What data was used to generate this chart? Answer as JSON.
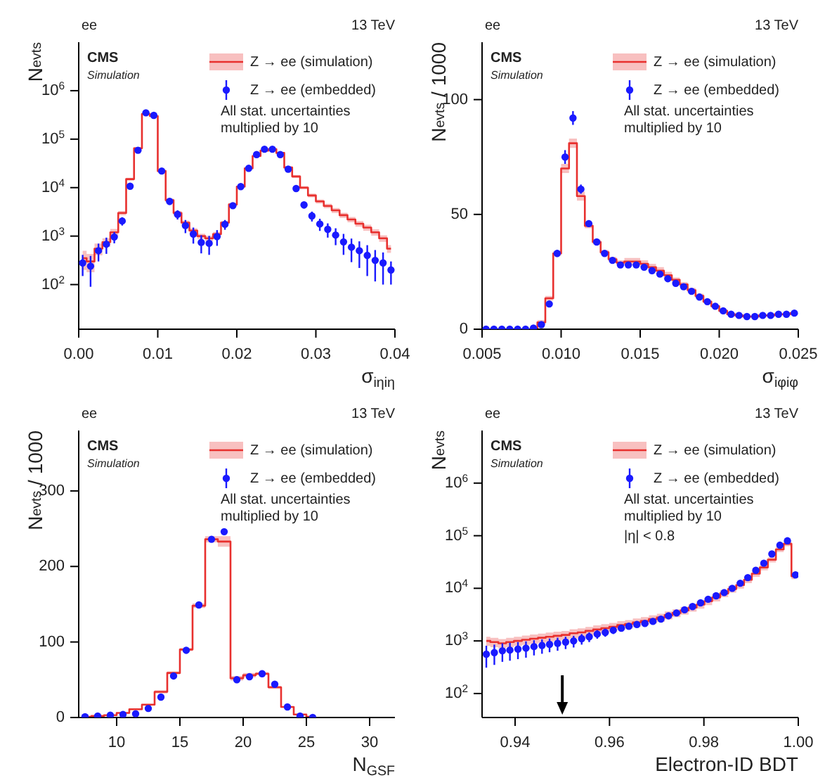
{
  "chart_data": [
    {
      "type": "step",
      "xlabel": "σ$_{iηiη}$",
      "ylabel": "N$_{evts}$",
      "log": "y",
      "legend": "top right",
      "annotations": [
        "ee",
        "13 TeV",
        "CMS",
        "Simulation",
        "All stat. uncertainties multiplied by 10"
      ],
      "x": [
        0.0005,
        0.0015,
        0.0025,
        0.0035,
        0.0045,
        0.0055,
        0.0065,
        0.0075,
        0.0085,
        0.0095,
        0.0105,
        0.0115,
        0.0125,
        0.0135,
        0.0145,
        0.0155,
        0.0165,
        0.0175,
        0.0185,
        0.0195,
        0.0205,
        0.0215,
        0.0225,
        0.0235,
        0.0245,
        0.0255,
        0.0265,
        0.0275,
        0.0285,
        0.0295,
        0.0305,
        0.0315,
        0.0325,
        0.0335,
        0.0345,
        0.0355,
        0.0365,
        0.0375,
        0.0385,
        0.0395
      ],
      "xlim": [
        0,
        0.04
      ],
      "xticks": [
        {
          "value": 0,
          "label": "0.00"
        },
        0.01,
        0.02,
        0.03,
        0.04
      ],
      "ylim": [
        12,
        10000000
      ],
      "yticks": [
        {
          "value": 100,
          "label": "10$^{2}$"
        },
        {
          "value": 1000,
          "label": "10$^{3}$"
        },
        {
          "value": 10000,
          "label": "10$^{4}$"
        },
        {
          "value": 100000,
          "label": "10$^{5}$"
        },
        {
          "value": 1000000,
          "label": "10$^{6}$"
        }
      ],
      "series": [
        {
          "name": "Z → ee (simulation)",
          "color": "#e8302e",
          "values": [
            350,
            300,
            550,
            750,
            1200,
            3000,
            15000,
            65000,
            330000,
            300000,
            22000,
            5500,
            3000,
            1900,
            1300,
            1000,
            900,
            1100,
            1900,
            4500,
            10500,
            25000,
            45000,
            58000,
            62000,
            52000,
            26000,
            17000,
            10000,
            6900,
            5200,
            4200,
            3400,
            2700,
            2200,
            1800,
            1500,
            1200,
            900,
            550
          ],
          "lower": [
            200,
            180,
            400,
            600,
            1000,
            2700,
            14000,
            62000,
            320000,
            290000,
            21000,
            5100,
            2700,
            1700,
            1150,
            880,
            790,
            980,
            1750,
            4200,
            10000,
            24000,
            43000,
            56000,
            60000,
            50000,
            24500,
            15800,
            9200,
            6300,
            4700,
            3750,
            3000,
            2380,
            1920,
            1560,
            1290,
            1020,
            760,
            450
          ],
          "upper": [
            500,
            430,
            700,
            900,
            1400,
            3300,
            16000,
            68000,
            340000,
            310000,
            23000,
            5900,
            3300,
            2100,
            1450,
            1120,
            1010,
            1220,
            2050,
            4800,
            11000,
            26000,
            47000,
            60000,
            64000,
            54000,
            27500,
            18200,
            10800,
            7500,
            5700,
            4650,
            3800,
            3020,
            2480,
            2040,
            1710,
            1380,
            1040,
            650
          ]
        },
        {
          "name": "Z → ee (embedded)",
          "type": "scatter",
          "marker": "circle",
          "color": "#1a1aff",
          "values": [
            280,
            240,
            500,
            680,
            960,
            2050,
            10700,
            59000,
            350000,
            310000,
            22000,
            5200,
            2800,
            1650,
            1100,
            740,
            710,
            980,
            1750,
            4250,
            10500,
            25000,
            48000,
            62000,
            62000,
            48000,
            24000,
            9600,
            4400,
            2600,
            1780,
            1380,
            1050,
            760,
            590,
            500,
            400,
            316,
            280,
            200
          ],
          "errors": [
            130,
            150,
            200,
            250,
            250,
            400,
            1000,
            3000,
            20000,
            20000,
            2000,
            800,
            600,
            500,
            400,
            300,
            300,
            350,
            400,
            600,
            1000,
            2000,
            3000,
            3000,
            3000,
            3000,
            2000,
            1000,
            700,
            600,
            500,
            450,
            400,
            350,
            300,
            280,
            250,
            200,
            180,
            100
          ]
        }
      ]
    },
    {
      "type": "step",
      "xlabel": "σ$_{iφiφ}$",
      "ylabel": "N$_{evts}$ / 1000",
      "legend": "top right",
      "annotations": [
        "ee",
        "13 TeV",
        "CMS",
        "Simulation",
        "All stat. uncertainties multiplied by 10"
      ],
      "x": [
        0.00525,
        0.00575,
        0.00625,
        0.00675,
        0.00725,
        0.00775,
        0.00825,
        0.00875,
        0.00925,
        0.00975,
        0.01025,
        0.01075,
        0.01125,
        0.01175,
        0.01225,
        0.01275,
        0.01325,
        0.01375,
        0.01425,
        0.01475,
        0.01525,
        0.01575,
        0.01625,
        0.01675,
        0.01725,
        0.01775,
        0.01825,
        0.01875,
        0.01925,
        0.01975,
        0.02025,
        0.02075,
        0.02125,
        0.02175,
        0.02225,
        0.02275,
        0.02325,
        0.02375,
        0.02425,
        0.02475
      ],
      "xlim": [
        0.005,
        0.025
      ],
      "xticks": [
        0.005,
        {
          "value": 0.01,
          "label": "0.010"
        },
        0.015,
        {
          "value": 0.02,
          "label": "0.020"
        },
        0.025
      ],
      "ylim": [
        0,
        125
      ],
      "yticks": [
        0,
        50,
        100
      ],
      "series": [
        {
          "name": "Z → ee (simulation)",
          "color": "#e8302e",
          "values": [
            null,
            null,
            null,
            null,
            null,
            null,
            0.5,
            3,
            13.5,
            33,
            70,
            81,
            58,
            45,
            38,
            33.5,
            30.5,
            29,
            29.5,
            29.5,
            28.5,
            27,
            25.5,
            23.5,
            21.5,
            19.5,
            17,
            14.5,
            12,
            10,
            8,
            6.5,
            6,
            5.5,
            5.5,
            6,
            6,
            6.5,
            6.5,
            7
          ],
          "lower": [
            null,
            null,
            null,
            null,
            null,
            null,
            0.3,
            2,
            12.5,
            32,
            68,
            79,
            56,
            44,
            37,
            32.5,
            29.5,
            28,
            28,
            28,
            27,
            25.5,
            24,
            22,
            20.5,
            18.5,
            16,
            13.5,
            11.5,
            9.5,
            7.5,
            6,
            5.5,
            5,
            5,
            5.5,
            5.5,
            6,
            6,
            6.5
          ],
          "upper": [
            null,
            null,
            null,
            null,
            null,
            null,
            0.7,
            4,
            14.5,
            34,
            72,
            83,
            60,
            46,
            39,
            34.5,
            31.5,
            30,
            31,
            31,
            30,
            28.5,
            27,
            25,
            22.5,
            20.5,
            18,
            15.5,
            12.5,
            10.5,
            8.5,
            7,
            6.5,
            6,
            6,
            6.5,
            6.5,
            7,
            7,
            7.5
          ]
        },
        {
          "name": "Z → ee (embedded)",
          "type": "scatter",
          "marker": "circle",
          "color": "#1a1aff",
          "values": [
            0,
            0,
            0,
            0,
            0,
            0,
            0.5,
            2,
            11,
            33,
            75,
            92,
            61,
            46,
            38,
            33,
            30,
            28,
            28,
            28,
            27,
            25.5,
            24,
            22,
            20,
            18.5,
            16.5,
            14,
            12,
            10,
            8,
            6.5,
            6,
            5.5,
            5.5,
            6,
            6,
            6.5,
            6.5,
            7
          ],
          "errors": [
            0,
            0,
            0,
            0,
            0,
            0,
            0,
            0.5,
            1,
            1.5,
            3,
            3,
            2,
            1.5,
            1,
            1,
            1,
            1,
            1,
            1,
            1,
            1,
            1,
            1,
            1,
            1,
            1,
            1,
            1,
            1,
            0.5,
            0.5,
            0.5,
            0.5,
            0.5,
            0.5,
            0.5,
            0.5,
            0.5,
            0.5
          ]
        }
      ]
    },
    {
      "type": "step",
      "xlabel": "N$_{GSF}$",
      "ylabel": "N$_{evts}$ / 1000",
      "legend": "top right",
      "annotations": [
        "ee",
        "13 TeV",
        "CMS",
        "Simulation",
        "All stat. uncertainties multiplied by 10"
      ],
      "x": [
        7.5,
        8.5,
        9.5,
        10.5,
        11.5,
        12.5,
        13.5,
        14.5,
        15.5,
        16.5,
        17.5,
        18.5,
        19.5,
        20.5,
        21.5,
        22.5,
        23.5,
        24.5,
        25.5
      ],
      "xlim": [
        7,
        32
      ],
      "xticks": [
        10,
        15,
        20,
        25,
        30
      ],
      "ylim": [
        0,
        380
      ],
      "yticks": [
        0,
        100,
        200,
        300
      ],
      "series": [
        {
          "name": "Z → ee (simulation)",
          "color": "#e8302e",
          "values": [
            1,
            2,
            3,
            6,
            11,
            17,
            34,
            59,
            90,
            148,
            236,
            233,
            52,
            56,
            58,
            40,
            14,
            4,
            1
          ],
          "lower": [
            0,
            1,
            2,
            5,
            10,
            16,
            32,
            57,
            88,
            145,
            232,
            226,
            49,
            53,
            56,
            38,
            13,
            3,
            0
          ],
          "upper": [
            2,
            3,
            4,
            7,
            12,
            18,
            36,
            61,
            92,
            151,
            240,
            240,
            55,
            59,
            60,
            42,
            15,
            5,
            2
          ]
        },
        {
          "name": "Z → ee (embedded)",
          "type": "scatter",
          "marker": "circle",
          "color": "#1a1aff",
          "values": [
            1,
            2,
            3,
            4,
            5,
            12,
            27,
            55,
            89,
            149,
            236,
            246,
            50,
            54,
            58,
            44,
            14,
            2,
            0
          ],
          "errors": [
            1,
            1,
            1,
            1,
            1,
            1,
            1,
            2,
            2,
            2,
            3,
            3,
            2,
            2,
            2,
            2,
            1,
            1,
            0
          ]
        }
      ]
    },
    {
      "type": "step",
      "xlabel": "Electron-ID BDT",
      "ylabel": "N$_{evts}$",
      "log": "y",
      "legend": "top right",
      "annotations": [
        "ee",
        "13 TeV",
        "CMS",
        "Simulation",
        "All stat. uncertainties multiplied by 10",
        "|η| < 0.8"
      ],
      "ref_lines": [
        {
          "axis": "x",
          "value": 0.95,
          "color": "#000000"
        }
      ],
      "x": [
        0.9339,
        0.9356,
        0.9373,
        0.9389,
        0.9406,
        0.9423,
        0.944,
        0.9457,
        0.9473,
        0.949,
        0.9507,
        0.9524,
        0.9541,
        0.9557,
        0.9574,
        0.9591,
        0.9608,
        0.9625,
        0.9641,
        0.9658,
        0.9675,
        0.9692,
        0.9709,
        0.9725,
        0.9742,
        0.9759,
        0.9776,
        0.9793,
        0.9809,
        0.9826,
        0.9843,
        0.986,
        0.9877,
        0.9893,
        0.991,
        0.9927,
        0.9944,
        0.9961,
        0.9977,
        0.9994
      ],
      "xlim": [
        0.933,
        1
      ],
      "xticks": [
        0.94,
        0.96,
        0.98,
        {
          "value": 1,
          "label": "1.00"
        }
      ],
      "ylim": [
        35,
        10000000
      ],
      "yticks": [
        {
          "value": 100,
          "label": "10$^{2}$"
        },
        {
          "value": 1000,
          "label": "10$^{3}$"
        },
        {
          "value": 10000,
          "label": "10$^{4}$"
        },
        {
          "value": 100000,
          "label": "10$^{5}$"
        },
        {
          "value": 1000000,
          "label": "10$^{6}$"
        }
      ],
      "series": [
        {
          "name": "Z → ee (simulation)",
          "color": "#e8302e",
          "values": [
            1000,
            950,
            900,
            950,
            1000,
            1050,
            1100,
            1150,
            1200,
            1250,
            1300,
            1400,
            1450,
            1550,
            1650,
            1750,
            1850,
            2000,
            2100,
            2250,
            2400,
            2600,
            2800,
            3100,
            3400,
            3800,
            4300,
            4900,
            5700,
            6700,
            8000,
            9700,
            11500,
            14500,
            19000,
            25000,
            35000,
            55000,
            70000,
            17000
          ],
          "lower": [
            800,
            760,
            720,
            760,
            800,
            840,
            880,
            920,
            960,
            1000,
            1050,
            1130,
            1170,
            1250,
            1330,
            1420,
            1500,
            1630,
            1710,
            1840,
            1970,
            2140,
            2310,
            2570,
            2830,
            3170,
            3600,
            4110,
            4800,
            5650,
            6800,
            8300,
            9900,
            12500,
            16500,
            22000,
            31000,
            49000,
            63000,
            15000
          ],
          "upper": [
            1200,
            1140,
            1080,
            1140,
            1200,
            1260,
            1320,
            1380,
            1440,
            1500,
            1550,
            1670,
            1730,
            1850,
            1970,
            2080,
            2200,
            2370,
            2490,
            2660,
            2830,
            3060,
            3290,
            3630,
            3970,
            4430,
            5000,
            5690,
            6600,
            7750,
            9200,
            11100,
            13100,
            16500,
            21500,
            28000,
            39000,
            61000,
            77000,
            19000
          ]
        },
        {
          "name": "Z → ee (embedded)",
          "type": "scatter",
          "marker": "circle",
          "color": "#1a1aff",
          "values": [
            560,
            600,
            650,
            670,
            700,
            730,
            780,
            820,
            860,
            900,
            950,
            1000,
            1100,
            1200,
            1350,
            1450,
            1600,
            1750,
            1900,
            2050,
            2150,
            2350,
            2600,
            3000,
            3400,
            3900,
            4500,
            5300,
            6200,
            7200,
            8300,
            10000,
            12500,
            16000,
            22000,
            30000,
            45000,
            66000,
            80000,
            18000
          ],
          "errors": [
            250,
            250,
            250,
            250,
            250,
            250,
            250,
            250,
            250,
            250,
            250,
            250,
            250,
            250,
            250,
            250,
            250,
            250,
            250,
            250,
            250,
            250,
            250,
            250,
            250,
            250,
            300,
            300,
            300,
            300,
            400,
            400,
            500,
            600,
            800,
            1000,
            1500,
            2000,
            3000,
            2000
          ]
        }
      ]
    }
  ]
}
